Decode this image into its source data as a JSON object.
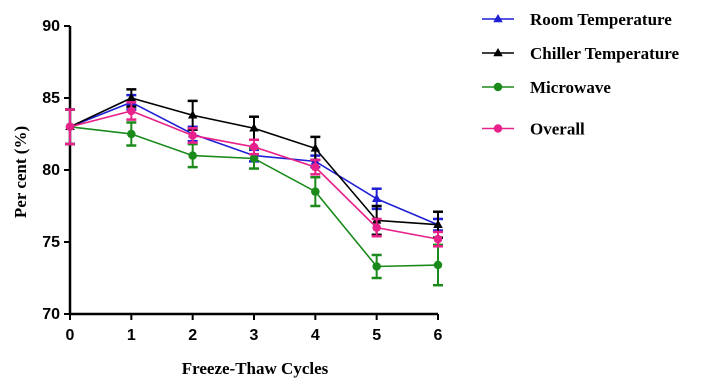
{
  "chart_data": {
    "type": "line",
    "xlabel": "Freeze-Thaw Cycles",
    "ylabel": "Per cent (%)",
    "x": [
      0,
      1,
      2,
      3,
      4,
      5,
      6
    ],
    "xlim": [
      0,
      6
    ],
    "ylim": [
      70,
      90
    ],
    "yticks": [
      70,
      75,
      80,
      85,
      90
    ],
    "grid": false,
    "legend_position": "top-right",
    "series": [
      {
        "name": "Room Temperature",
        "color": "#1f1fd6",
        "marker": "triangle",
        "values": [
          83.0,
          84.7,
          82.5,
          81.0,
          80.6,
          78.0,
          76.2
        ],
        "errors": [
          1.2,
          0.5,
          0.5,
          0.4,
          0.4,
          0.7,
          0.4
        ]
      },
      {
        "name": "Chiller Temperature",
        "color": "#000000",
        "marker": "triangle",
        "values": [
          83.0,
          85.0,
          83.8,
          82.9,
          81.5,
          76.5,
          76.2
        ],
        "errors": [
          1.2,
          0.6,
          1.0,
          0.8,
          0.8,
          1.0,
          0.9
        ]
      },
      {
        "name": "Microwave",
        "color": "#1a8a1a",
        "marker": "circle",
        "values": [
          83.0,
          82.5,
          81.0,
          80.8,
          78.5,
          73.3,
          73.4
        ],
        "errors": [
          1.2,
          0.8,
          0.8,
          0.7,
          1.0,
          0.8,
          1.4
        ]
      },
      {
        "name": "Overall",
        "color": "#e8228a",
        "marker": "circle",
        "values": [
          83.0,
          84.1,
          82.4,
          81.6,
          80.2,
          76.0,
          75.2
        ],
        "errors": [
          1.2,
          0.6,
          0.5,
          0.5,
          0.5,
          0.6,
          0.5
        ]
      }
    ]
  }
}
